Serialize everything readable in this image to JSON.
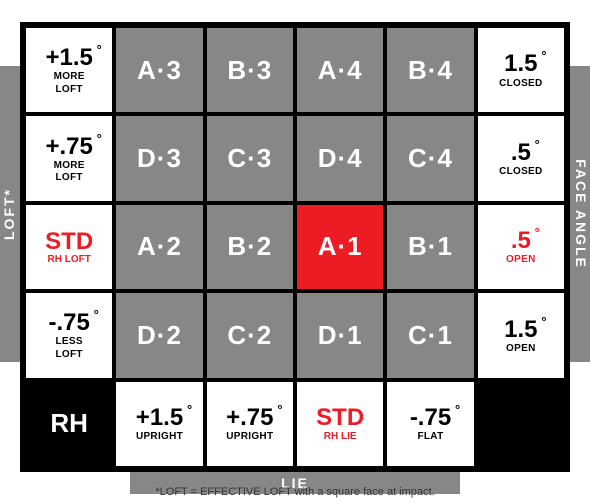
{
  "axes": {
    "left_label": "LOFT*",
    "right_label": "FACE ANGLE",
    "bottom_label": "LIE"
  },
  "colors": {
    "gray": "#878787",
    "red": "#ed1c24",
    "black": "#000000",
    "white": "#ffffff"
  },
  "footnote": "*LOFT = EFFECTIVE LOFT with a square face at impact.",
  "row1": {
    "left": {
      "value": "+1.5",
      "sub": "MORE",
      "sub2": "LOFT"
    },
    "c1": "A·3",
    "c2": "B·3",
    "c3": "A·4",
    "c4": "B·4",
    "right": {
      "value": "1.5",
      "sub": "CLOSED"
    }
  },
  "row2": {
    "left": {
      "value": "+.75",
      "sub": "MORE",
      "sub2": "LOFT"
    },
    "c1": "D·3",
    "c2": "C·3",
    "c3": "D·4",
    "c4": "C·4",
    "right": {
      "value": ".5",
      "sub": "CLOSED"
    }
  },
  "row3": {
    "left": {
      "value": "STD",
      "sub": "RH LOFT"
    },
    "c1": "A·2",
    "c2": "B·2",
    "c3": "A·1",
    "c4": "B·1",
    "right": {
      "value": ".5",
      "sub": "OPEN"
    }
  },
  "row4": {
    "left": {
      "value": "-.75",
      "sub": "LESS",
      "sub2": "LOFT"
    },
    "c1": "D·2",
    "c2": "C·2",
    "c3": "D·1",
    "c4": "C·1",
    "right": {
      "value": "1.5",
      "sub": "OPEN"
    }
  },
  "row5": {
    "corner_left": "RH",
    "b1": {
      "value": "+1.5",
      "sub": "UPRIGHT"
    },
    "b2": {
      "value": "+.75",
      "sub": "UPRIGHT"
    },
    "b3": {
      "value": "STD",
      "sub": "RH LIE"
    },
    "b4": {
      "value": "-.75",
      "sub": "FLAT"
    }
  }
}
